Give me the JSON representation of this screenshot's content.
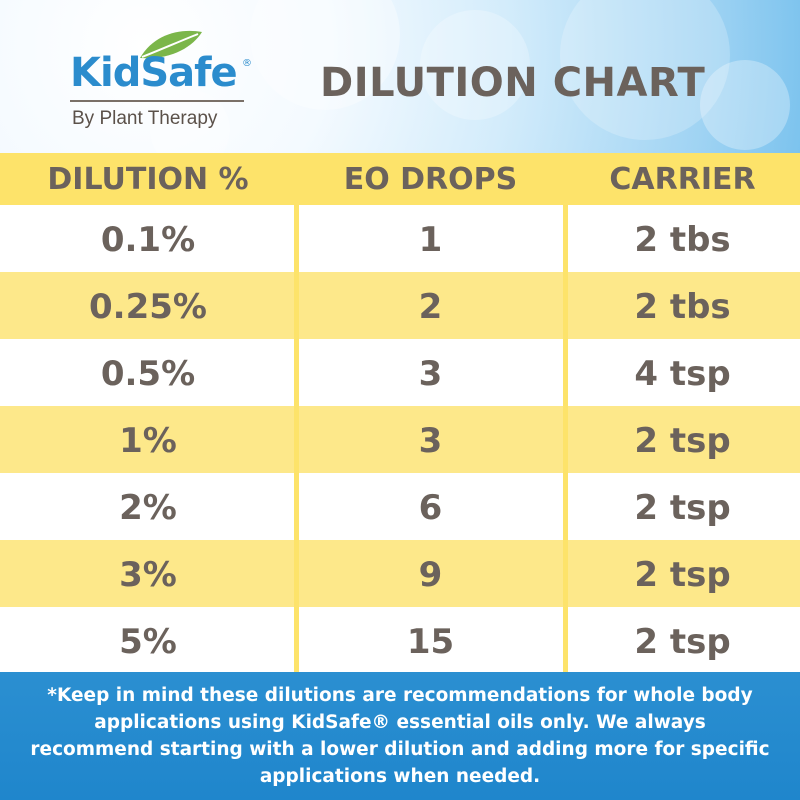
{
  "header": {
    "logo_word": "KidSafe",
    "logo_registered": "®",
    "logo_subtitle": "By Plant Therapy"
  },
  "chart_data": {
    "type": "table",
    "title": "DILUTION CHART",
    "columns": [
      "DILUTION %",
      "EO DROPS",
      "CARRIER"
    ],
    "rows": [
      [
        "0.1%",
        "1",
        "2 tbs"
      ],
      [
        "0.25%",
        "2",
        "2 tbs"
      ],
      [
        "0.5%",
        "3",
        "4 tsp"
      ],
      [
        "1%",
        "3",
        "2 tsp"
      ],
      [
        "2%",
        "6",
        "2 tsp"
      ],
      [
        "3%",
        "9",
        "2 tsp"
      ],
      [
        "5%",
        "15",
        "2 tsp"
      ]
    ]
  },
  "footer": {
    "note": "*Keep in mind these dilutions are recommendations for whole body applications using KidSafe® essential oils only. We always recommend starting with a lower dilution and adding more for specific applications when needed."
  },
  "colors": {
    "brand_blue": "#2b8ccd",
    "text_brown": "#6b625c",
    "yellow": "#fde36a",
    "leaf_green": "#7bb64a"
  }
}
